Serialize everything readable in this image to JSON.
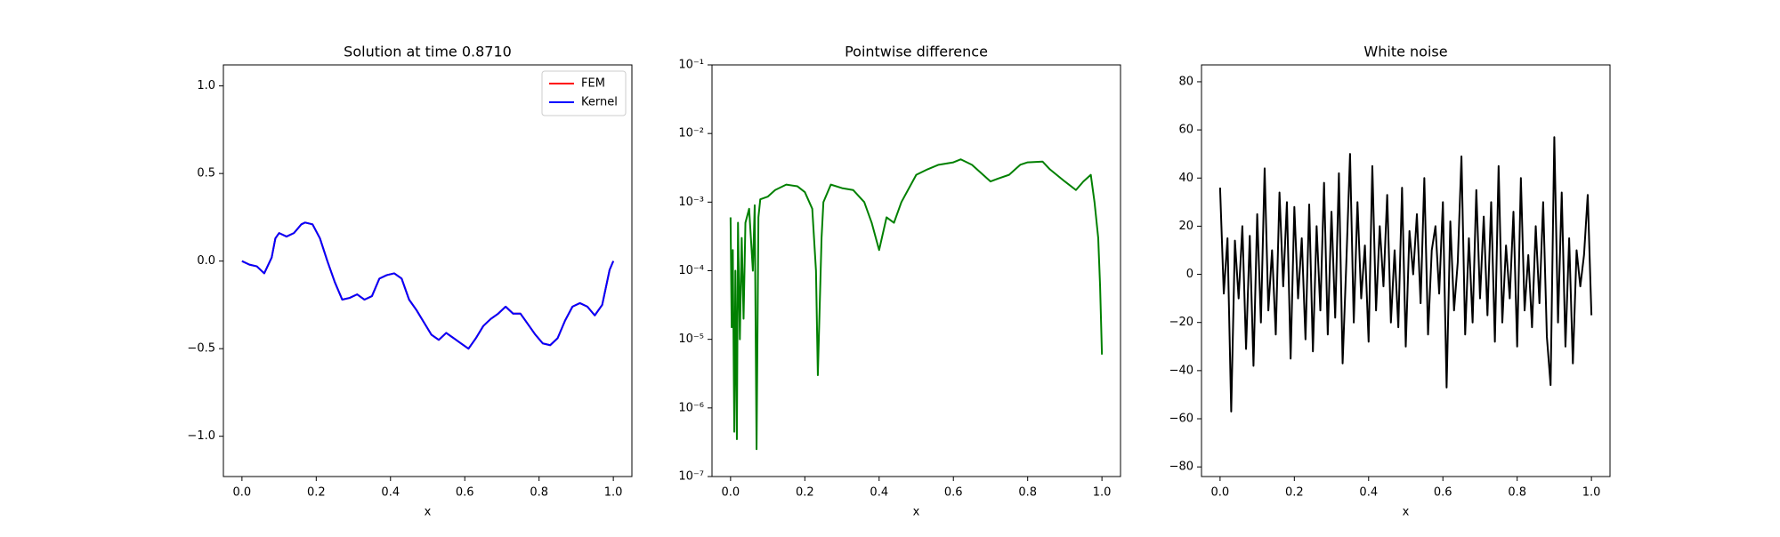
{
  "chart_data": [
    {
      "type": "line",
      "title": "Solution at time 0.8710",
      "xlabel": "x",
      "x": [
        0,
        0.02,
        0.04,
        0.06,
        0.08,
        0.09,
        0.1,
        0.12,
        0.14,
        0.16,
        0.17,
        0.19,
        0.21,
        0.23,
        0.25,
        0.27,
        0.29,
        0.31,
        0.33,
        0.35,
        0.37,
        0.39,
        0.41,
        0.43,
        0.45,
        0.47,
        0.49,
        0.51,
        0.53,
        0.55,
        0.57,
        0.59,
        0.61,
        0.63,
        0.65,
        0.67,
        0.69,
        0.71,
        0.73,
        0.75,
        0.77,
        0.79,
        0.81,
        0.83,
        0.85,
        0.87,
        0.89,
        0.91,
        0.93,
        0.95,
        0.97,
        0.99,
        1.0
      ],
      "series": [
        {
          "name": "FEM",
          "color": "#ff0000",
          "values": [
            0,
            -0.02,
            -0.03,
            -0.07,
            0.02,
            0.13,
            0.16,
            0.14,
            0.16,
            0.21,
            0.22,
            0.21,
            0.13,
            0.0,
            -0.12,
            -0.22,
            -0.21,
            -0.19,
            -0.22,
            -0.2,
            -0.1,
            -0.08,
            -0.07,
            -0.1,
            -0.22,
            -0.28,
            -0.35,
            -0.42,
            -0.45,
            -0.41,
            -0.44,
            -0.47,
            -0.5,
            -0.44,
            -0.37,
            -0.33,
            -0.3,
            -0.26,
            -0.3,
            -0.3,
            -0.36,
            -0.42,
            -0.47,
            -0.48,
            -0.44,
            -0.34,
            -0.26,
            -0.24,
            -0.26,
            -0.31,
            -0.25,
            -0.05,
            0.0
          ]
        },
        {
          "name": "Kernel",
          "color": "#0000ff",
          "values": [
            0,
            -0.02,
            -0.03,
            -0.07,
            0.02,
            0.13,
            0.16,
            0.14,
            0.16,
            0.21,
            0.22,
            0.21,
            0.13,
            0.0,
            -0.12,
            -0.22,
            -0.21,
            -0.19,
            -0.22,
            -0.2,
            -0.1,
            -0.08,
            -0.07,
            -0.1,
            -0.22,
            -0.28,
            -0.35,
            -0.42,
            -0.45,
            -0.41,
            -0.44,
            -0.47,
            -0.5,
            -0.44,
            -0.37,
            -0.33,
            -0.3,
            -0.26,
            -0.3,
            -0.3,
            -0.36,
            -0.42,
            -0.47,
            -0.48,
            -0.44,
            -0.34,
            -0.26,
            -0.24,
            -0.26,
            -0.31,
            -0.25,
            -0.05,
            0.0
          ]
        }
      ],
      "xlim": [
        -0.05,
        1.05
      ],
      "ylim": [
        -1.23,
        1.12
      ],
      "xticks": [
        {
          "value": 0,
          "label": "0.0"
        },
        {
          "value": 0.2,
          "label": "0.2"
        },
        {
          "value": 0.4,
          "label": "0.4"
        },
        {
          "value": 0.6,
          "label": "0.6"
        },
        {
          "value": 0.8,
          "label": "0.8"
        },
        {
          "value": 1,
          "label": "1.0"
        }
      ],
      "yticks": [
        {
          "value": -1,
          "label": "−1.0"
        },
        {
          "value": -0.5,
          "label": "−0.5"
        },
        {
          "value": 0,
          "label": "0.0"
        },
        0.5,
        {
          "value": 1,
          "label": "1.0"
        }
      ],
      "legend": "upper right"
    },
    {
      "type": "line",
      "title": "Pointwise difference",
      "xlabel": "x",
      "log_y": true,
      "x": [
        0,
        0.003,
        0.006,
        0.01,
        0.013,
        0.017,
        0.02,
        0.025,
        0.03,
        0.035,
        0.04,
        0.05,
        0.06,
        0.065,
        0.07,
        0.075,
        0.08,
        0.1,
        0.12,
        0.15,
        0.18,
        0.2,
        0.22,
        0.23,
        0.235,
        0.24,
        0.245,
        0.25,
        0.27,
        0.3,
        0.33,
        0.36,
        0.38,
        0.4,
        0.42,
        0.44,
        0.46,
        0.5,
        0.53,
        0.56,
        0.6,
        0.62,
        0.65,
        0.68,
        0.7,
        0.72,
        0.75,
        0.78,
        0.8,
        0.84,
        0.86,
        0.9,
        0.93,
        0.95,
        0.97,
        0.98,
        0.99,
        0.995,
        1.0
      ],
      "series": [
        {
          "color": "#008000",
          "values": [
            0.0006,
            1.5e-05,
            0.0002,
            4.5e-07,
            0.0001,
            3.5e-07,
            0.0005,
            1e-05,
            0.0003,
            2e-05,
            0.0005,
            0.0008,
            0.0001,
            0.0009,
            2.5e-07,
            0.0006,
            0.0011,
            0.0012,
            0.0015,
            0.0018,
            0.0017,
            0.0014,
            0.0008,
            0.0001,
            3e-06,
            3e-05,
            0.0003,
            0.001,
            0.0018,
            0.0016,
            0.0015,
            0.001,
            0.0005,
            0.0002,
            0.0006,
            0.0005,
            0.001,
            0.0025,
            0.003,
            0.0035,
            0.0038,
            0.0042,
            0.0035,
            0.0025,
            0.002,
            0.0022,
            0.0025,
            0.0035,
            0.0038,
            0.0039,
            0.003,
            0.002,
            0.0015,
            0.002,
            0.0025,
            0.001,
            0.0003,
            6e-05,
            6e-06
          ]
        }
      ],
      "xlim": [
        -0.05,
        1.05
      ],
      "ylim": [
        1e-07,
        0.1
      ],
      "xticks": [
        {
          "value": 0,
          "label": "0.0"
        },
        {
          "value": 0.2,
          "label": "0.2"
        },
        {
          "value": 0.4,
          "label": "0.4"
        },
        {
          "value": 0.6,
          "label": "0.6"
        },
        {
          "value": 0.8,
          "label": "0.8"
        },
        {
          "value": 1,
          "label": "1.0"
        }
      ],
      "yticks": [
        {
          "value": 1e-07,
          "label": "10⁻⁷"
        },
        {
          "value": 1e-06,
          "label": "10⁻⁶"
        },
        {
          "value": 1e-05,
          "label": "10⁻⁵"
        },
        {
          "value": 0.0001,
          "label": "10⁻⁴"
        },
        {
          "value": 0.001,
          "label": "10⁻³"
        },
        {
          "value": 0.01,
          "label": "10⁻²"
        },
        {
          "value": 0.1,
          "label": "10⁻¹"
        }
      ]
    },
    {
      "type": "line",
      "title": "White noise",
      "xlabel": "x",
      "x": [
        0,
        0.01,
        0.02,
        0.03,
        0.04,
        0.05,
        0.06,
        0.07,
        0.08,
        0.09,
        0.1,
        0.11,
        0.12,
        0.13,
        0.14,
        0.15,
        0.16,
        0.17,
        0.18,
        0.19,
        0.2,
        0.21,
        0.22,
        0.23,
        0.24,
        0.25,
        0.26,
        0.27,
        0.28,
        0.29,
        0.3,
        0.31,
        0.32,
        0.33,
        0.34,
        0.35,
        0.36,
        0.37,
        0.38,
        0.39,
        0.4,
        0.41,
        0.42,
        0.43,
        0.44,
        0.45,
        0.46,
        0.47,
        0.48,
        0.49,
        0.5,
        0.51,
        0.52,
        0.53,
        0.54,
        0.55,
        0.56,
        0.57,
        0.58,
        0.59,
        0.6,
        0.61,
        0.62,
        0.63,
        0.64,
        0.65,
        0.66,
        0.67,
        0.68,
        0.69,
        0.7,
        0.71,
        0.72,
        0.73,
        0.74,
        0.75,
        0.76,
        0.77,
        0.78,
        0.79,
        0.8,
        0.81,
        0.82,
        0.83,
        0.84,
        0.85,
        0.86,
        0.87,
        0.88,
        0.89,
        0.9,
        0.91,
        0.92,
        0.93,
        0.94,
        0.95,
        0.96,
        0.97,
        0.98,
        0.99,
        1.0
      ],
      "series": [
        {
          "color": "#000000",
          "values": [
            36,
            -8,
            15,
            -57,
            14,
            -10,
            20,
            -31,
            16,
            -38,
            25,
            -20,
            44,
            -15,
            10,
            -25,
            34,
            -5,
            30,
            -35,
            28,
            -10,
            15,
            -27,
            29,
            -32,
            20,
            -15,
            38,
            -25,
            26,
            -18,
            42,
            -37,
            5,
            50,
            -20,
            30,
            -10,
            12,
            -28,
            45,
            -15,
            20,
            -5,
            33,
            -20,
            10,
            -22,
            36,
            -30,
            18,
            0,
            25,
            -12,
            40,
            -25,
            10,
            20,
            -8,
            30,
            -47,
            22,
            -15,
            5,
            49,
            -25,
            15,
            -20,
            35,
            -10,
            24,
            -17,
            30,
            -28,
            45,
            -20,
            12,
            -10,
            26,
            -30,
            40,
            -15,
            8,
            -22,
            20,
            -12,
            30,
            -26,
            -46,
            57,
            -20,
            34,
            -30,
            15,
            -37,
            10,
            -5,
            8,
            33,
            -17
          ]
        }
      ],
      "xlim": [
        -0.05,
        1.05
      ],
      "ylim": [
        -84,
        87
      ],
      "xticks": [
        {
          "value": 0,
          "label": "0.0"
        },
        {
          "value": 0.2,
          "label": "0.2"
        },
        {
          "value": 0.4,
          "label": "0.4"
        },
        {
          "value": 0.6,
          "label": "0.6"
        },
        {
          "value": 0.8,
          "label": "0.8"
        },
        {
          "value": 1,
          "label": "1.0"
        }
      ],
      "yticks": [
        {
          "value": -80,
          "label": "−80"
        },
        {
          "value": -60,
          "label": "−60"
        },
        {
          "value": -40,
          "label": "−40"
        },
        {
          "value": -20,
          "label": "−20"
        },
        0,
        20,
        40,
        60,
        80
      ]
    }
  ]
}
